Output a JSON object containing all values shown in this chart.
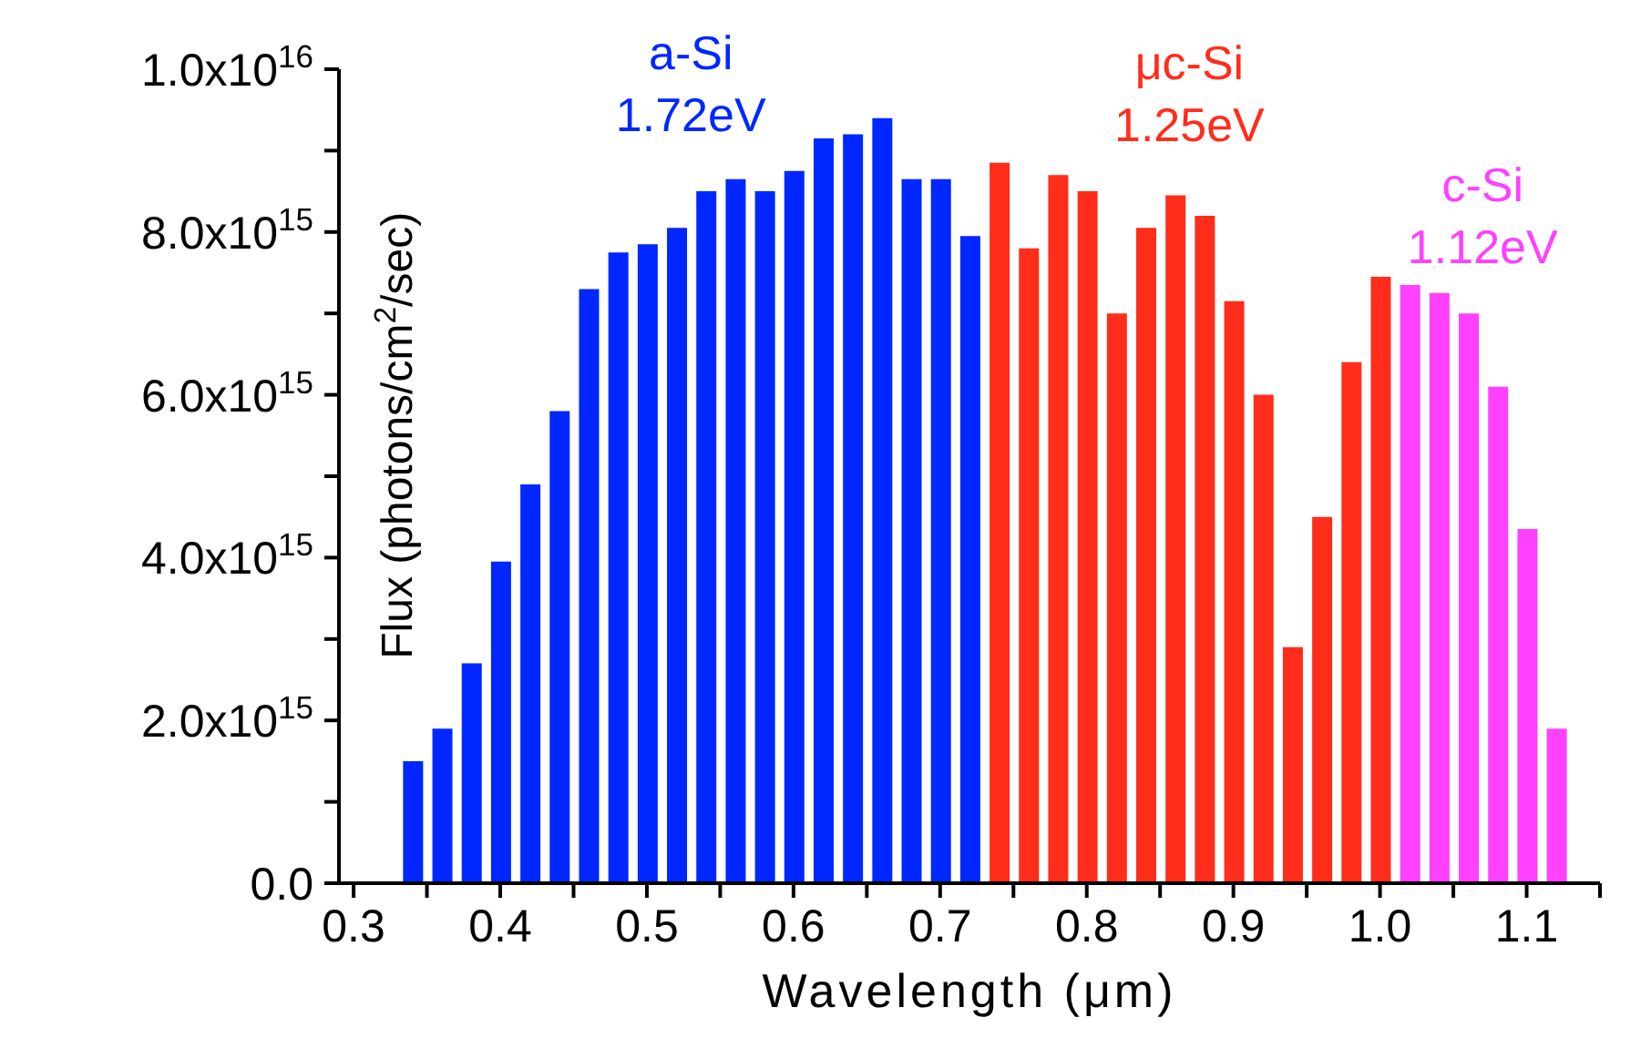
{
  "chart_data": {
    "type": "bar",
    "xlabel": "Wavelength (μm)",
    "ylabel": "Flux (photons/cm$^{2}$/sec)",
    "xlim": [
      0.29,
      1.15
    ],
    "xticks": [
      0.3,
      {
        "value": 0.35,
        "label": null
      },
      0.4,
      {
        "value": 0.45,
        "label": null
      },
      0.5,
      {
        "value": 0.55,
        "label": null
      },
      0.6,
      {
        "value": 0.65,
        "label": null
      },
      0.7,
      {
        "value": 0.75,
        "label": null
      },
      0.8,
      {
        "value": 0.85,
        "label": null
      },
      0.9,
      {
        "value": 0.95,
        "label": null
      },
      {
        "value": 1.0,
        "label": "1.0"
      },
      {
        "value": 1.05,
        "label": null
      },
      1.1,
      {
        "value": 1.15,
        "label": null
      }
    ],
    "ylim": [
      0,
      1e+16
    ],
    "yticks": [
      {
        "value": 0,
        "label": "0.0"
      },
      {
        "value": 1000000000000000.0,
        "label": null
      },
      {
        "value": 2000000000000000.0,
        "label": "2.0x10$^{15}$"
      },
      {
        "value": 3000000000000000.0,
        "label": null
      },
      {
        "value": 4000000000000000.0,
        "label": "4.0x10$^{15}$"
      },
      {
        "value": 5000000000000000.0,
        "label": null
      },
      {
        "value": 6000000000000000.0,
        "label": "6.0x10$^{15}$"
      },
      {
        "value": 7000000000000000.0,
        "label": null
      },
      {
        "value": 8000000000000000.0,
        "label": "8.0x10$^{15}$"
      },
      {
        "value": 9000000000000000.0,
        "label": null
      },
      {
        "value": 1e+16,
        "label": "1.0x10$^{16}$"
      }
    ],
    "legend": false,
    "grid": false,
    "series": [
      {
        "name": "a-Si 1.72eV",
        "color": "#0027ff",
        "x": [
          0.34,
          0.36,
          0.38,
          0.4,
          0.42,
          0.44,
          0.46,
          0.48,
          0.5,
          0.52,
          0.54,
          0.56,
          0.58,
          0.6,
          0.62,
          0.64,
          0.66,
          0.68,
          0.7,
          0.72
        ],
        "values": [
          1500000000000000.0,
          1900000000000000.0,
          2700000000000000.0,
          3950000000000000.0,
          4900000000000000.0,
          5800000000000000.0,
          7300000000000000.0,
          7750000000000000.0,
          7850000000000000.0,
          8050000000000000.0,
          8500000000000000.0,
          8650000000000000.0,
          8500000000000000.0,
          8750000000000000.0,
          9150000000000000.0,
          9200000000000000.0,
          9400000000000000.0,
          8650000000000000.0,
          8650000000000000.0,
          7950000000000000.0
        ]
      },
      {
        "name": "μc-Si 1.25eV",
        "color": "#ff2d1a",
        "x": [
          0.74,
          0.76,
          0.78,
          0.8,
          0.82,
          0.84,
          0.86,
          0.88,
          0.9,
          0.92,
          0.94,
          0.96,
          0.98,
          1.0
        ],
        "values": [
          8850000000000000.0,
          7800000000000000.0,
          8700000000000000.0,
          8500000000000000.0,
          7000000000000000.0,
          8050000000000000.0,
          8450000000000000.0,
          8200000000000000.0,
          7150000000000000.0,
          6000000000000000.0,
          2900000000000000.0,
          4500000000000000.0,
          6400000000000000.0,
          7450000000000000.0
        ]
      },
      {
        "name": "c-Si 1.12eV",
        "color": "#ff40ff",
        "x": [
          1.02,
          1.04,
          1.06,
          1.08,
          1.1,
          1.12
        ],
        "values": [
          7350000000000000.0,
          7250000000000000.0,
          7000000000000000.0,
          6100000000000000.0,
          4350000000000000.0,
          1900000000000000.0
        ]
      }
    ]
  }
}
